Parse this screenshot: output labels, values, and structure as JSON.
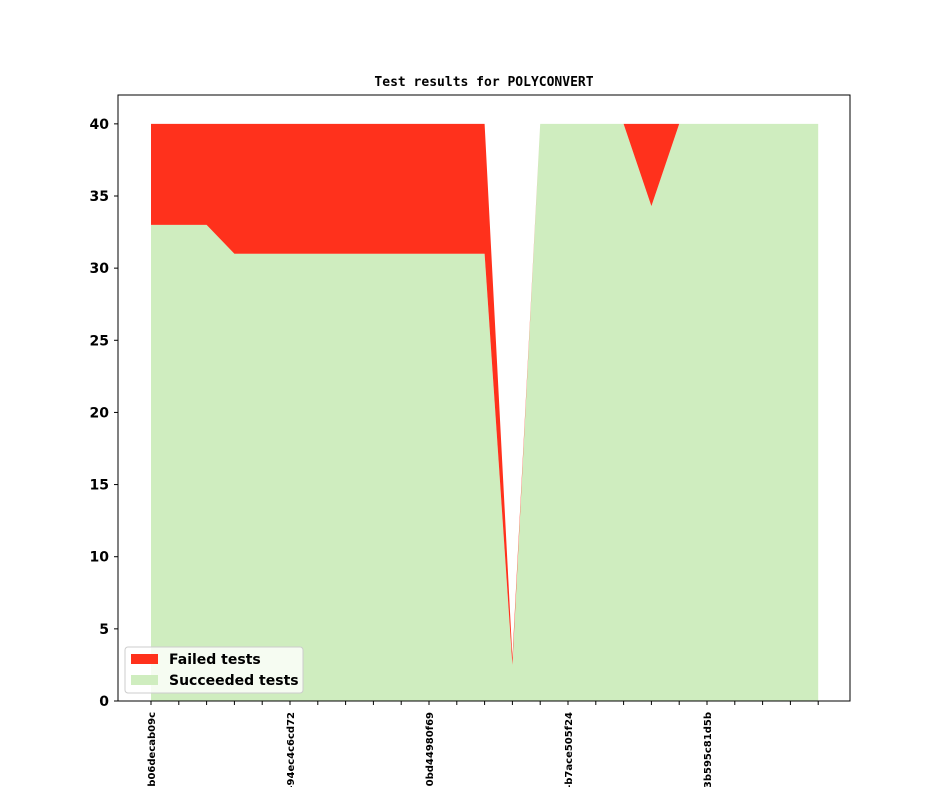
{
  "chart_data": {
    "type": "area",
    "title": "Test results for POLYCONVERT",
    "xlabel": "",
    "ylabel": "",
    "ylim": [
      0,
      42
    ],
    "yticks": [
      0,
      5,
      10,
      15,
      20,
      25,
      30,
      35,
      40
    ],
    "grid": false,
    "legend_position": "lower-left",
    "x_tick_labels": [
      "-b06decab09c",
      "-94ec4c6cd72",
      "0bd44980f69",
      "-b7ace505f24",
      "3b595c81d5b"
    ],
    "x_tick_label_indices": [
      0,
      5,
      10,
      15,
      20
    ],
    "num_commits": 25,
    "stacked": true,
    "series": [
      {
        "name": "Succeeded tests",
        "color": "#cfedbf",
        "values": [
          33,
          33,
          33,
          31,
          31,
          31,
          31,
          31,
          31,
          31,
          31,
          31,
          31,
          2.5,
          40,
          40,
          40,
          40,
          34.3,
          40,
          40,
          40,
          40,
          40,
          40
        ]
      },
      {
        "name": "Failed tests",
        "color": "#ff311c",
        "values": [
          7,
          7,
          7,
          9,
          9,
          9,
          9,
          9,
          9,
          9,
          9,
          9,
          9,
          0.5,
          0,
          0,
          0,
          0,
          5.7,
          0,
          0,
          0,
          0,
          0,
          0
        ]
      }
    ]
  }
}
